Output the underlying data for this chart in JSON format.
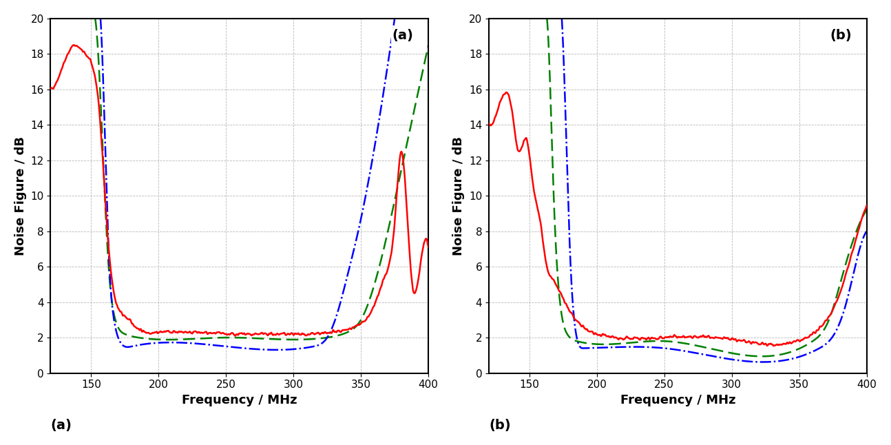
{
  "xlim": [
    120,
    400
  ],
  "ylim": [
    0,
    20
  ],
  "xticks": [
    150,
    200,
    250,
    300,
    350,
    400
  ],
  "yticks": [
    0,
    2,
    4,
    6,
    8,
    10,
    12,
    14,
    16,
    18,
    20
  ],
  "xlabel": "Frequency / MHz",
  "ylabel": "Noise Figure / dB",
  "label_a": "(a)",
  "label_b": "(b)",
  "red_color": "#ff0000",
  "green_color": "#008000",
  "blue_color": "#0000ff",
  "background_color": "#ffffff",
  "grid_color": "#b0b0b0"
}
